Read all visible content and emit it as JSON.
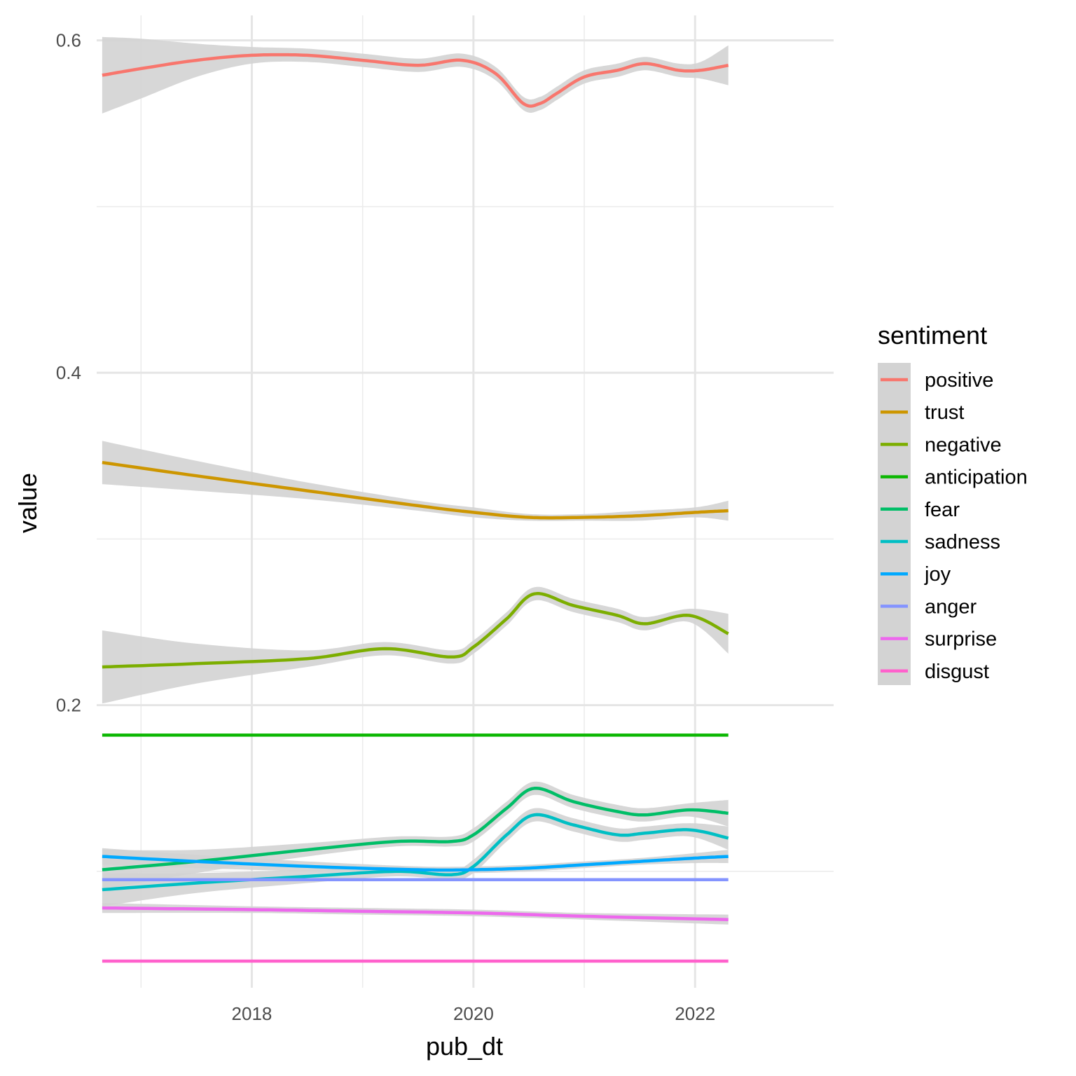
{
  "chart_data": {
    "type": "line",
    "xlabel": "pub_dt",
    "ylabel": "value",
    "x_ticks": [
      2018,
      2020,
      2022
    ],
    "y_ticks": [
      0.2,
      0.4,
      0.6
    ],
    "xlim": [
      2016.6,
      2023.25
    ],
    "ylim": [
      0.03,
      0.615
    ],
    "grid": true,
    "confidence_band": true,
    "band_color": "#d3d3d3",
    "legend": {
      "title": "sentiment",
      "position": "right"
    },
    "series": [
      {
        "name": "positive",
        "color": "#F8766D",
        "x": [
          2016.65,
          2017.0,
          2017.5,
          2018.0,
          2018.5,
          2019.0,
          2019.5,
          2019.9,
          2020.2,
          2020.45,
          2020.6,
          2020.75,
          2021.0,
          2021.3,
          2021.55,
          2021.85,
          2022.05,
          2022.3
        ],
        "y": [
          0.579,
          0.583,
          0.588,
          0.591,
          0.591,
          0.588,
          0.585,
          0.588,
          0.58,
          0.562,
          0.562,
          0.568,
          0.578,
          0.582,
          0.586,
          0.582,
          0.582,
          0.585
        ],
        "se": [
          0.023,
          0.018,
          0.01,
          0.005,
          0.004,
          0.004,
          0.004,
          0.004,
          0.004,
          0.004,
          0.004,
          0.004,
          0.004,
          0.004,
          0.004,
          0.004,
          0.005,
          0.012
        ]
      },
      {
        "name": "trust",
        "color": "#CD9600",
        "x": [
          2016.65,
          2017.5,
          2018.5,
          2019.5,
          2020.0,
          2020.5,
          2021.0,
          2021.5,
          2022.0,
          2022.3
        ],
        "y": [
          0.346,
          0.338,
          0.329,
          0.32,
          0.316,
          0.313,
          0.313,
          0.314,
          0.316,
          0.317
        ],
        "se": [
          0.013,
          0.009,
          0.005,
          0.003,
          0.003,
          0.002,
          0.002,
          0.003,
          0.003,
          0.006
        ]
      },
      {
        "name": "negative",
        "color": "#7CAE00",
        "x": [
          2016.65,
          2017.5,
          2018.5,
          2019.2,
          2019.8,
          2020.0,
          2020.3,
          2020.55,
          2020.9,
          2021.3,
          2021.55,
          2021.95,
          2022.3
        ],
        "y": [
          0.223,
          0.225,
          0.228,
          0.234,
          0.229,
          0.235,
          0.252,
          0.267,
          0.26,
          0.254,
          0.249,
          0.254,
          0.243
        ],
        "se": [
          0.022,
          0.012,
          0.005,
          0.004,
          0.004,
          0.004,
          0.004,
          0.004,
          0.004,
          0.004,
          0.004,
          0.004,
          0.012
        ]
      },
      {
        "name": "anticipation",
        "color": "#0CB702",
        "x": [
          2016.65,
          2022.3
        ],
        "y": [
          0.182,
          0.182
        ],
        "se": [
          0.0,
          0.0
        ]
      },
      {
        "name": "fear",
        "color": "#00BE67",
        "x": [
          2016.65,
          2017.5,
          2018.5,
          2019.3,
          2019.8,
          2020.0,
          2020.3,
          2020.55,
          2020.9,
          2021.3,
          2021.55,
          2021.95,
          2022.3
        ],
        "y": [
          0.101,
          0.106,
          0.113,
          0.118,
          0.118,
          0.122,
          0.138,
          0.15,
          0.142,
          0.136,
          0.134,
          0.137,
          0.135
        ],
        "se": [
          0.012,
          0.007,
          0.004,
          0.003,
          0.003,
          0.004,
          0.004,
          0.004,
          0.004,
          0.004,
          0.004,
          0.004,
          0.008
        ]
      },
      {
        "name": "sadness",
        "color": "#00BFC4",
        "x": [
          2016.65,
          2017.5,
          2018.5,
          2019.3,
          2019.8,
          2020.0,
          2020.3,
          2020.55,
          2020.9,
          2021.3,
          2021.55,
          2021.95,
          2022.3
        ],
        "y": [
          0.089,
          0.093,
          0.097,
          0.1,
          0.098,
          0.103,
          0.122,
          0.134,
          0.128,
          0.122,
          0.123,
          0.125,
          0.12
        ],
        "se": [
          0.01,
          0.006,
          0.004,
          0.003,
          0.003,
          0.004,
          0.004,
          0.004,
          0.004,
          0.004,
          0.004,
          0.004,
          0.007
        ]
      },
      {
        "name": "joy",
        "color": "#00A9FF",
        "x": [
          2016.65,
          2017.5,
          2018.5,
          2019.5,
          2020.0,
          2020.5,
          2021.0,
          2021.5,
          2022.0,
          2022.3
        ],
        "y": [
          0.109,
          0.106,
          0.103,
          0.101,
          0.101,
          0.102,
          0.104,
          0.106,
          0.108,
          0.109
        ],
        "se": [
          0.005,
          0.004,
          0.003,
          0.002,
          0.002,
          0.002,
          0.002,
          0.002,
          0.003,
          0.004
        ]
      },
      {
        "name": "anger",
        "color": "#8494FF",
        "x": [
          2016.65,
          2022.3
        ],
        "y": [
          0.095,
          0.095
        ],
        "se": [
          0.0,
          0.0
        ]
      },
      {
        "name": "surprise",
        "color": "#ED68ED",
        "x": [
          2016.65,
          2018.0,
          2019.0,
          2020.0,
          2021.0,
          2022.3
        ],
        "y": [
          0.078,
          0.077,
          0.076,
          0.075,
          0.073,
          0.071
        ],
        "se": [
          0.003,
          0.002,
          0.002,
          0.002,
          0.002,
          0.003
        ]
      },
      {
        "name": "disgust",
        "color": "#FF61CC",
        "x": [
          2016.65,
          2022.3
        ],
        "y": [
          0.046,
          0.046
        ],
        "se": [
          0.0,
          0.0
        ]
      }
    ]
  }
}
